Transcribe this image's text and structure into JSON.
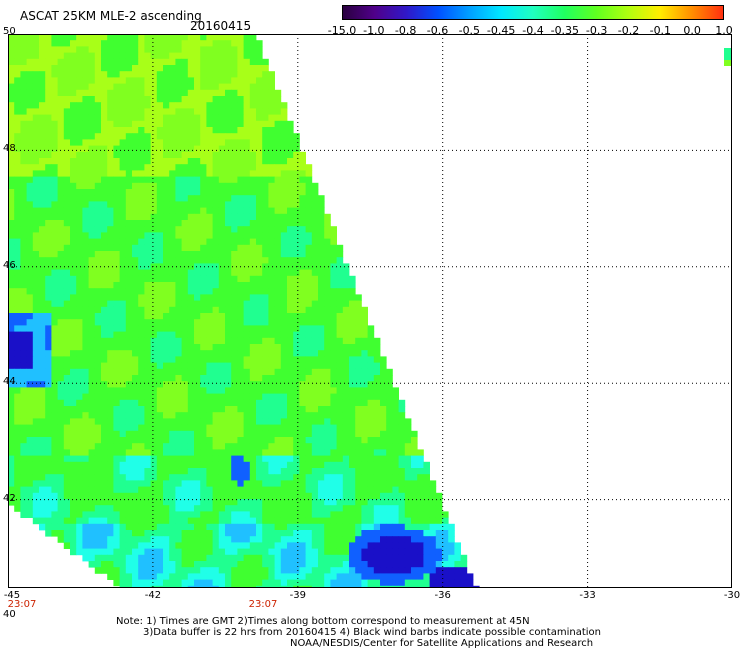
{
  "header": {
    "title": "ASCAT 25KM MLE-2 ascending",
    "date": "20160415"
  },
  "colorbar": {
    "colors": [
      "#2a0040",
      "#50008a",
      "#3018c8",
      "#0050ff",
      "#00a0ff",
      "#00e8ff",
      "#20ffc0",
      "#20ff60",
      "#60ff20",
      "#b0ff10",
      "#ffee00",
      "#ff9000",
      "#ff3010"
    ],
    "labels": [
      "-15.0",
      "-1.0",
      "-0.8",
      "-0.6",
      "-0.5",
      "-0.45",
      "-0.4",
      "-0.35",
      "-0.3",
      "-0.2",
      "-0.1",
      "0.0",
      "1.0"
    ]
  },
  "map": {
    "lon_range": [
      -45,
      -30
    ],
    "lat_range": [
      40,
      50
    ],
    "x_tick_labels": [
      "-45",
      "-42",
      "-39",
      "-36",
      "-33",
      "-30"
    ],
    "y_tick_labels": [
      "50",
      "48",
      "46",
      "44",
      "42",
      "40"
    ],
    "time_labels": [
      "23:07",
      "23:07"
    ],
    "palette": {
      "dark_blue": "#1a10c8",
      "blue": "#1060ff",
      "light_blue": "#20c0ff",
      "cyan": "#20ffe8",
      "green_cyan": "#20ff90",
      "green": "#40ff30",
      "yellow_green": "#80ff20",
      "bright_yellow_green": "#a8ff18",
      "navy": "#1a0090"
    }
  },
  "notes": {
    "line1": "Note: 1) Times are GMT 2)Times along bottom correspond to measurement at 45N",
    "line2": "3)Data buffer is 22 hrs from 20160415 4) Black wind barbs indicate possible contamination",
    "line3": "NOAA/NESDIS/Center for Satellite Applications and Research"
  }
}
